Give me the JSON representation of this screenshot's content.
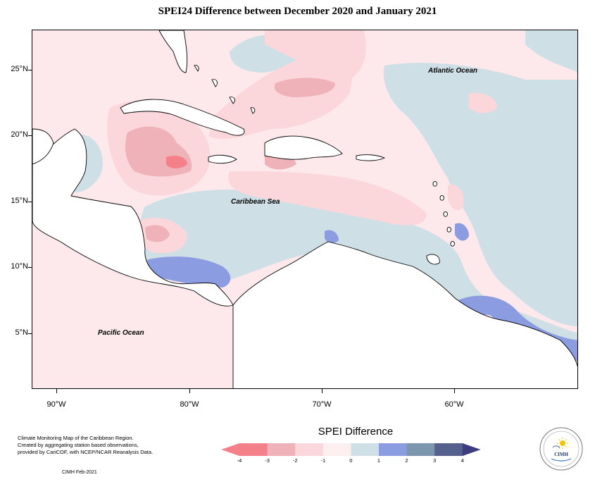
{
  "title": "SPEI24 Difference between December 2020 and January 2021",
  "lat_ticks": [
    "25°N",
    "20°N",
    "15°N",
    "10°N",
    "5°N"
  ],
  "lon_ticks": [
    "90°W",
    "80°W",
    "70°W",
    "60°W"
  ],
  "labels": {
    "atlantic": "Atlantic Ocean",
    "caribbean": "Caribbean Sea",
    "pacific": "Pacific Ocean"
  },
  "credit_lines": [
    "Climate Monitoring Map of the Caribbean Region.",
    "Created by aggregating station based observations,",
    "provided by CariCOF, with NCEP/NCAR Reanalysis Data."
  ],
  "credit_short": "CIMH Feb-2021",
  "legend": {
    "title": "SPEI Difference",
    "ticks": [
      "-4",
      "-3",
      "-2",
      "-1",
      "0",
      "1",
      "2",
      "3",
      "4"
    ],
    "colors": [
      "#f4818a",
      "#efb2b8",
      "#fbd7dc",
      "#fdeef0",
      "#cfdfe6",
      "#8b9ce0",
      "#7c96ad",
      "#56608c"
    ],
    "under_color": "#f4818a",
    "over_color": "#3e3c80"
  },
  "logo": {
    "text": "CIMH",
    "icon": "sun-icon"
  },
  "colors": {
    "land": "#ffffff",
    "coast": "#000000"
  }
}
